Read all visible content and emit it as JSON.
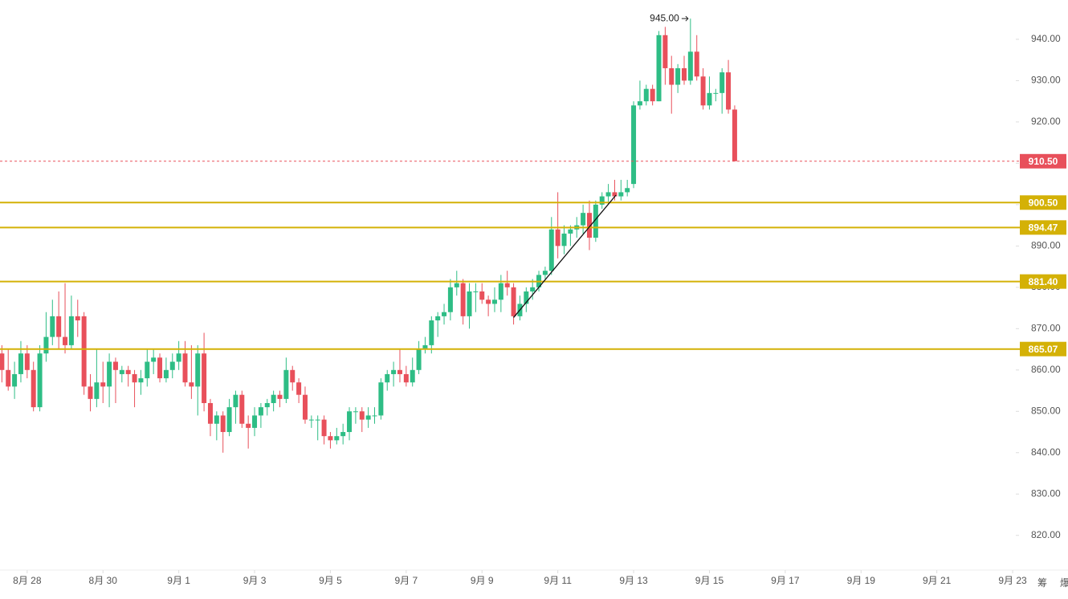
{
  "chart_data": {
    "type": "candlestick",
    "up_color": "#2ebd85",
    "down_color": "#e8505b",
    "level_color": "#d4b106",
    "current_color": "#e8505b",
    "ylim": [
      811.6,
      949.5
    ],
    "xlim": [
      -0.3,
      160.5
    ],
    "yticks": [
      {
        "value": 820,
        "label": "820.00"
      },
      {
        "value": 830,
        "label": "830.00"
      },
      {
        "value": 840,
        "label": "840.00"
      },
      {
        "value": 850,
        "label": "850.00"
      },
      {
        "value": 860,
        "label": "860.00"
      },
      {
        "value": 870,
        "label": "870.00"
      },
      {
        "value": 880,
        "label": "880.00"
      },
      {
        "value": 890,
        "label": "890.00"
      },
      {
        "value": 900,
        "label": "900.00"
      },
      {
        "value": 910,
        "label": "910.00"
      },
      {
        "value": 920,
        "label": "920.00"
      },
      {
        "value": 930,
        "label": "930.00"
      },
      {
        "value": 940,
        "label": "940.00"
      }
    ],
    "xticks": [
      {
        "value": 4,
        "label": "8月 28"
      },
      {
        "value": 16,
        "label": "8月 30"
      },
      {
        "value": 28,
        "label": "9月 1"
      },
      {
        "value": 40,
        "label": "9月 3"
      },
      {
        "value": 52,
        "label": "9月 5"
      },
      {
        "value": 64,
        "label": "9月 7"
      },
      {
        "value": 76,
        "label": "9月 9"
      },
      {
        "value": 88,
        "label": "9月 11"
      },
      {
        "value": 100,
        "label": "9月 13"
      },
      {
        "value": 112,
        "label": "9月 15"
      },
      {
        "value": 124,
        "label": "9月 17"
      },
      {
        "value": 136,
        "label": "9月 19"
      },
      {
        "value": 148,
        "label": "9月 21"
      },
      {
        "value": 160,
        "label": "9月 23"
      }
    ],
    "open": [
      864,
      860,
      856,
      859,
      864,
      860,
      851,
      864,
      868,
      873,
      868,
      866,
      873,
      873,
      856,
      853,
      857,
      856,
      862,
      859,
      860,
      859,
      857,
      858,
      862,
      863,
      858,
      860,
      862,
      864,
      857,
      856,
      864,
      852,
      847,
      849,
      845,
      851,
      854,
      847,
      846,
      849,
      851,
      852,
      854,
      853,
      860,
      857,
      854,
      848,
      848,
      848,
      844,
      843,
      844,
      845,
      850,
      850,
      848,
      849,
      849,
      857,
      859,
      860,
      859,
      857,
      860,
      865,
      866,
      872,
      873,
      874,
      880,
      881,
      873,
      879,
      879,
      877,
      876,
      877,
      881,
      880,
      873,
      876,
      879,
      880,
      883,
      884,
      894,
      890,
      893,
      894,
      895,
      898,
      892,
      900,
      902,
      903,
      902,
      903,
      905,
      924,
      925,
      928,
      925,
      941,
      933,
      929,
      933,
      930,
      937,
      931,
      924,
      927,
      927,
      932,
      923
    ],
    "high": [
      866,
      865,
      862,
      867,
      866,
      862,
      866,
      874,
      877,
      879,
      881,
      878,
      877,
      874,
      859,
      865,
      862,
      864,
      863,
      861,
      861,
      860,
      860,
      865,
      865,
      864,
      863,
      864,
      867,
      867,
      866,
      866,
      869,
      853,
      850,
      850,
      853,
      855,
      855,
      849,
      851,
      852,
      853,
      855,
      855,
      863,
      861,
      858,
      856,
      849,
      849,
      849,
      845,
      846,
      847,
      851,
      851,
      851,
      851,
      851,
      858,
      860,
      862,
      865,
      861,
      863,
      867,
      868,
      873,
      874,
      876,
      882,
      884,
      882,
      881,
      881,
      881,
      878,
      880,
      883,
      884,
      881,
      878,
      880,
      882,
      884,
      885,
      897,
      903,
      895,
      895,
      897,
      900,
      901,
      901,
      903,
      905,
      906,
      906,
      906,
      925,
      930,
      929,
      929,
      942,
      943,
      936,
      934,
      936,
      945,
      941,
      933,
      931,
      928,
      933,
      935,
      924
    ],
    "low": [
      857,
      855,
      853,
      857,
      858,
      850,
      850,
      862,
      866,
      865,
      864,
      865,
      868,
      854,
      850,
      851,
      852,
      851,
      852,
      857,
      856,
      851,
      854,
      856,
      859,
      857,
      857,
      858,
      860,
      856,
      853,
      849,
      850,
      844,
      843,
      840,
      844,
      847,
      846,
      841,
      844,
      846,
      849,
      850,
      851,
      852,
      855,
      852,
      847,
      846,
      843,
      842,
      841,
      842,
      842,
      843,
      847,
      845,
      846,
      847,
      848,
      855,
      856,
      857,
      856,
      856,
      859,
      864,
      864,
      868,
      871,
      872,
      878,
      871,
      870,
      874,
      876,
      873,
      874,
      874,
      878,
      871,
      872,
      874,
      877,
      879,
      882,
      883,
      887,
      888,
      890,
      892,
      893,
      889,
      891,
      899,
      900,
      901,
      901,
      902,
      904,
      923,
      924,
      924,
      925,
      929,
      922,
      927,
      929,
      929,
      930,
      923,
      923,
      925,
      922,
      922,
      910.5
    ],
    "close": [
      860,
      856,
      859,
      864,
      860,
      851,
      864,
      868,
      873,
      868,
      866,
      873,
      872,
      856,
      853,
      857,
      856,
      862,
      860,
      860,
      859,
      857,
      858,
      862,
      863,
      858,
      860,
      862,
      864,
      857,
      856,
      864,
      852,
      847,
      849,
      845,
      851,
      854,
      847,
      846,
      849,
      851,
      852,
      854,
      853,
      860,
      857,
      854,
      848,
      848,
      848,
      844,
      843,
      844,
      845,
      850,
      850,
      848,
      849,
      849,
      857,
      859,
      860,
      859,
      857,
      860,
      865,
      866,
      872,
      873,
      874,
      880,
      881,
      873,
      879,
      879,
      877,
      876,
      877,
      881,
      880,
      873,
      876,
      879,
      880,
      883,
      884,
      894,
      890,
      893,
      894,
      895,
      898,
      892,
      900,
      902,
      903,
      902,
      903,
      904,
      924,
      925,
      928,
      925,
      941,
      933,
      929,
      933,
      930,
      937,
      931,
      924,
      927,
      927,
      932,
      923,
      910.5
    ],
    "levels": [
      {
        "value": 900.5,
        "label": "900.50"
      },
      {
        "value": 894.47,
        "label": "894.47"
      },
      {
        "value": 881.4,
        "label": "881.40"
      },
      {
        "value": 865.07,
        "label": "865.07"
      }
    ],
    "current_price": {
      "value": 910.5,
      "label": "910.50"
    },
    "high_marker": {
      "x": 109,
      "value": 945,
      "label": "945.00"
    },
    "trendline": {
      "x": [
        81,
        97.2
      ],
      "y": [
        872.7,
        902.3
      ]
    },
    "corner_labels": [
      "筹",
      "爆"
    ]
  }
}
